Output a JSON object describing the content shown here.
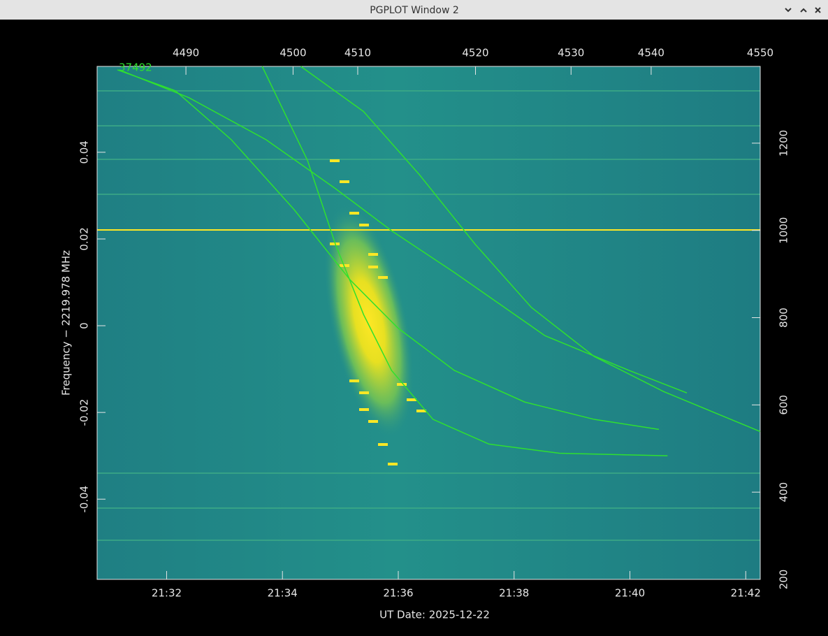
{
  "window": {
    "title": "PGPLOT Window 2"
  },
  "chart_data": {
    "type": "line",
    "xlabel": "UT Date: 2025-12-22",
    "ylabel": "Frequency − 2219.978 MHz",
    "annotation": "37492",
    "xlim": [
      "21:30:48",
      "21:42:15"
    ],
    "xticks": [
      "21:32",
      "21:34",
      "21:36",
      "21:38",
      "21:40",
      "21:42"
    ],
    "x2ticks": [
      {
        "value": "21:32:20",
        "label": "4490"
      },
      {
        "value": "21:34:11",
        "label": "4500"
      },
      {
        "value": "21:35:18",
        "label": "4510"
      },
      {
        "value": "21:37:20",
        "label": "4520"
      },
      {
        "value": "21:38:59",
        "label": "4530"
      },
      {
        "value": "21:40:22",
        "label": "4540"
      },
      {
        "value": "21:42:15",
        "label": "4550"
      }
    ],
    "ylim": [
      -0.0585,
      0.0598
    ],
    "yticks": [
      0.04,
      0.02,
      0,
      -0.02,
      -0.04
    ],
    "y2lim": [
      200,
      1376
    ],
    "y2ticks": [
      200,
      400,
      600,
      800,
      1000,
      1200
    ],
    "series": [
      {
        "color": "#2fe02f",
        "x": [
          "21:33:39",
          "21:34:26",
          "21:34:55",
          "21:35:24",
          "21:35:53",
          "21:36:36",
          "21:37:34",
          "21:38:47",
          "21:40:39"
        ],
        "values": [
          0.0598,
          0.0381,
          0.0187,
          0.0026,
          -0.0103,
          -0.0216,
          -0.0273,
          -0.0294,
          -0.03
        ]
      },
      {
        "color": "#2fe02f",
        "x": [
          "21:31:09",
          "21:32:09",
          "21:33:07",
          "21:34:12",
          "21:35:10",
          "21:36:00",
          "21:36:58",
          "21:38:11",
          "21:39:23",
          "21:40:30"
        ],
        "values": [
          0.059,
          0.0542,
          0.0429,
          0.0268,
          0.0106,
          -0.0006,
          -0.0103,
          -0.0176,
          -0.0216,
          -0.0239
        ]
      },
      {
        "color": "#2fe02f",
        "x": [
          "21:31:11",
          "21:32:23",
          "21:33:43",
          "21:34:55",
          "21:35:53",
          "21:36:58",
          "21:38:32",
          "21:39:59",
          "21:40:59"
        ],
        "values": [
          0.059,
          0.0526,
          0.0429,
          0.0316,
          0.0219,
          0.0123,
          -0.0023,
          -0.0103,
          -0.0155
        ]
      },
      {
        "color": "#2fe02f",
        "x": [
          "21:34:19",
          "21:35:24",
          "21:36:22",
          "21:37:20",
          "21:38:18",
          "21:39:23",
          "21:40:35",
          "21:42:15"
        ],
        "values": [
          0.0598,
          0.0494,
          0.0348,
          0.0187,
          0.0042,
          -0.0071,
          -0.0152,
          -0.0244
        ]
      }
    ]
  }
}
